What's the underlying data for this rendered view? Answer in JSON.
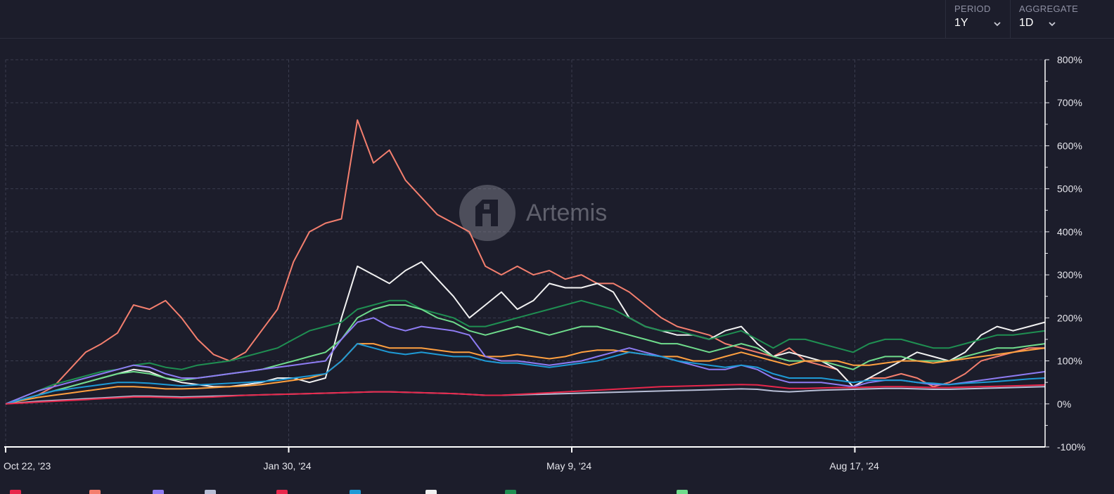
{
  "controls": {
    "period": {
      "label": "PERIOD",
      "value": "1Y"
    },
    "aggregate": {
      "label": "AGGREGATE",
      "value": "1D"
    }
  },
  "watermark": {
    "text": "Artemis"
  },
  "chart_data": {
    "type": "line",
    "x_ticks": [
      "Oct 22, '23",
      "Jan 30, '24",
      "May 9, '24",
      "Aug 17, '24"
    ],
    "x_range": [
      "Oct 22, '23",
      "Oct 22, '24"
    ],
    "y_ticks": [
      "800%",
      "700%",
      "600%",
      "500%",
      "400%",
      "300%",
      "200%",
      "100%",
      "0%",
      "-100%"
    ],
    "ylim": [
      -100,
      800
    ],
    "y_unit": "%",
    "grid": true,
    "series": [
      {
        "color": "#f47f6e",
        "values": [
          0,
          10,
          20,
          40,
          80,
          120,
          140,
          165,
          230,
          220,
          240,
          200,
          150,
          115,
          100,
          120,
          170,
          220,
          330,
          400,
          420,
          430,
          660,
          560,
          590,
          520,
          480,
          440,
          420,
          400,
          320,
          300,
          320,
          300,
          310,
          290,
          300,
          280,
          280,
          260,
          230,
          200,
          180,
          170,
          160,
          140,
          130,
          120,
          110,
          130,
          100,
          90,
          80,
          40,
          60,
          60,
          70,
          60,
          40,
          50,
          70,
          100,
          110,
          120,
          130,
          130
        ]
      },
      {
        "color": "#f2f2f2",
        "values": [
          0,
          10,
          20,
          30,
          40,
          50,
          60,
          70,
          80,
          75,
          60,
          50,
          45,
          40,
          40,
          45,
          50,
          60,
          60,
          50,
          60,
          200,
          320,
          300,
          280,
          310,
          330,
          290,
          250,
          200,
          230,
          260,
          220,
          240,
          280,
          270,
          270,
          280,
          260,
          200,
          180,
          170,
          160,
          160,
          150,
          170,
          180,
          140,
          110,
          120,
          110,
          100,
          80,
          40,
          60,
          80,
          100,
          120,
          110,
          100,
          120,
          160,
          180,
          170,
          180,
          190
        ]
      },
      {
        "color": "#1f8f52",
        "values": [
          0,
          15,
          30,
          45,
          55,
          65,
          75,
          80,
          90,
          95,
          85,
          80,
          90,
          95,
          100,
          110,
          120,
          130,
          150,
          170,
          180,
          190,
          220,
          230,
          240,
          240,
          220,
          210,
          200,
          180,
          180,
          190,
          200,
          210,
          220,
          230,
          240,
          230,
          220,
          200,
          180,
          170,
          170,
          160,
          150,
          160,
          170,
          150,
          130,
          150,
          150,
          140,
          130,
          120,
          140,
          150,
          150,
          140,
          130,
          130,
          140,
          150,
          160,
          160,
          165,
          170
        ]
      },
      {
        "color": "#6fdc8c",
        "values": [
          0,
          10,
          20,
          30,
          40,
          50,
          60,
          70,
          75,
          70,
          60,
          55,
          60,
          65,
          70,
          75,
          80,
          90,
          100,
          110,
          120,
          150,
          200,
          220,
          230,
          230,
          220,
          200,
          190,
          170,
          160,
          170,
          180,
          170,
          160,
          170,
          180,
          180,
          170,
          160,
          150,
          140,
          140,
          130,
          120,
          130,
          140,
          130,
          110,
          100,
          100,
          100,
          90,
          80,
          100,
          110,
          110,
          100,
          100,
          100,
          110,
          120,
          130,
          130,
          135,
          140
        ]
      },
      {
        "color": "#ffa040",
        "values": [
          0,
          8,
          15,
          20,
          25,
          30,
          35,
          40,
          40,
          38,
          35,
          35,
          36,
          38,
          40,
          42,
          45,
          50,
          55,
          60,
          70,
          100,
          140,
          140,
          130,
          130,
          130,
          125,
          120,
          120,
          110,
          110,
          115,
          110,
          105,
          110,
          120,
          125,
          125,
          120,
          115,
          110,
          110,
          100,
          100,
          110,
          120,
          110,
          100,
          90,
          100,
          100,
          100,
          90,
          90,
          95,
          100,
          100,
          95,
          100,
          105,
          110,
          115,
          120,
          125,
          130
        ]
      },
      {
        "color": "#8e7cf3",
        "values": [
          0,
          15,
          30,
          40,
          50,
          60,
          70,
          80,
          90,
          85,
          70,
          60,
          60,
          65,
          70,
          75,
          80,
          85,
          90,
          95,
          100,
          150,
          190,
          200,
          180,
          170,
          180,
          175,
          170,
          160,
          110,
          100,
          100,
          95,
          90,
          95,
          100,
          110,
          120,
          130,
          120,
          110,
          100,
          90,
          80,
          80,
          90,
          80,
          60,
          50,
          50,
          50,
          45,
          40,
          50,
          55,
          55,
          50,
          45,
          45,
          50,
          55,
          60,
          65,
          70,
          75
        ]
      },
      {
        "color": "#1e9ad6",
        "values": [
          0,
          10,
          20,
          30,
          35,
          40,
          45,
          50,
          50,
          48,
          45,
          42,
          44,
          46,
          48,
          50,
          52,
          55,
          60,
          65,
          70,
          100,
          140,
          130,
          120,
          115,
          120,
          115,
          110,
          110,
          100,
          95,
          95,
          90,
          85,
          90,
          95,
          100,
          110,
          120,
          115,
          110,
          100,
          95,
          90,
          85,
          90,
          85,
          70,
          60,
          60,
          60,
          55,
          50,
          55,
          55,
          55,
          50,
          48,
          45,
          48,
          50,
          52,
          55,
          58,
          60
        ]
      },
      {
        "color": "#b8bed6",
        "values": [
          0,
          3,
          6,
          8,
          10,
          12,
          14,
          16,
          18,
          18,
          17,
          16,
          17,
          18,
          19,
          20,
          21,
          22,
          23,
          24,
          25,
          26,
          27,
          28,
          28,
          27,
          26,
          25,
          24,
          22,
          20,
          20,
          21,
          22,
          23,
          24,
          25,
          26,
          27,
          28,
          29,
          30,
          31,
          32,
          33,
          34,
          35,
          34,
          30,
          28,
          30,
          32,
          33,
          34,
          35,
          36,
          36,
          35,
          34,
          34,
          35,
          36,
          37,
          38,
          39,
          40
        ]
      },
      {
        "color": "#e8274b",
        "values": [
          0,
          2,
          4,
          6,
          8,
          10,
          12,
          14,
          16,
          16,
          15,
          14,
          15,
          16,
          18,
          20,
          21,
          22,
          23,
          24,
          25,
          26,
          27,
          28,
          28,
          27,
          26,
          25,
          24,
          22,
          20,
          20,
          22,
          24,
          26,
          28,
          30,
          32,
          34,
          36,
          38,
          40,
          41,
          42,
          43,
          44,
          45,
          44,
          40,
          36,
          36,
          37,
          38,
          38,
          39,
          40,
          40,
          39,
          38,
          38,
          39,
          40,
          41,
          42,
          43,
          44
        ]
      }
    ]
  },
  "legend_colors": [
    "#e8274b",
    "#f47f6e",
    "#8e7cf3",
    "#b8bed6",
    "#e8274b",
    "#1e9ad6",
    "#f2f2f2",
    "#1f8f52",
    "#6fdc8c"
  ]
}
